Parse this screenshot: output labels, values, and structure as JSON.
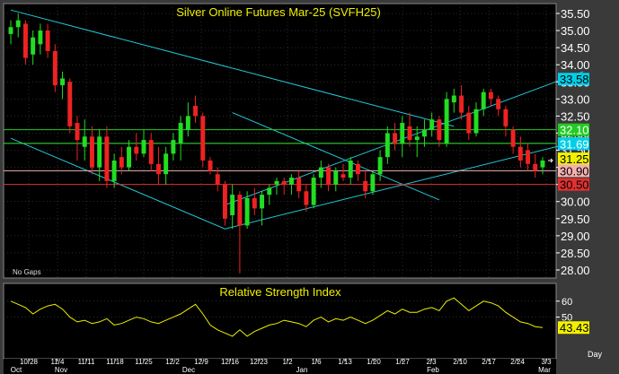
{
  "chart_data": [
    {
      "type": "candlestick",
      "title": "Silver Online Futures Mar-25 (SVFH25)",
      "note": "No Gaps",
      "ylim": [
        27.75,
        35.75
      ],
      "y_ticks": [
        "35.50",
        "35.00",
        "34.50",
        "34.00",
        "33.50",
        "33.00",
        "32.50",
        "32.00",
        "31.50",
        "31.00",
        "30.50",
        "30.00",
        "29.50",
        "29.00",
        "28.50",
        "28.00"
      ],
      "x_ticks": [
        "10/28",
        "11/4",
        "11/11",
        "11/18",
        "11/25",
        "12/2",
        "12/9",
        "12/16",
        "12/23",
        "1/2",
        "1/6",
        "1/13",
        "1/20",
        "1/27",
        "2/3",
        "2/10",
        "2/17",
        "2/24",
        "3/3"
      ],
      "x_month_labels": [
        "Oct",
        "Nov",
        "Dec",
        "Jan",
        "Feb",
        "Mar"
      ],
      "x_unit_label": "Day",
      "candles": [
        [
          34.9,
          35.3,
          34.6,
          35.1
        ],
        [
          35.1,
          35.5,
          34.8,
          35.3
        ],
        [
          35.2,
          35.3,
          34.0,
          34.2
        ],
        [
          34.3,
          35.0,
          34.0,
          34.8
        ],
        [
          34.6,
          35.2,
          34.3,
          35.0
        ],
        [
          35.0,
          35.2,
          34.2,
          34.4
        ],
        [
          34.4,
          34.6,
          33.2,
          33.4
        ],
        [
          33.4,
          33.8,
          33.0,
          33.6
        ],
        [
          33.5,
          33.6,
          32.0,
          32.2
        ],
        [
          32.3,
          32.5,
          31.2,
          31.8
        ],
        [
          31.6,
          32.4,
          31.2,
          31.9
        ],
        [
          31.9,
          32.2,
          30.8,
          31.0
        ],
        [
          31.0,
          32.1,
          30.6,
          31.9
        ],
        [
          31.9,
          32.2,
          30.4,
          30.6
        ],
        [
          30.6,
          31.4,
          30.4,
          31.2
        ],
        [
          31.3,
          31.6,
          30.8,
          31.0
        ],
        [
          31.0,
          31.8,
          30.9,
          31.6
        ],
        [
          31.6,
          32.0,
          31.2,
          31.4
        ],
        [
          31.4,
          32.1,
          31.3,
          31.8
        ],
        [
          31.8,
          32.0,
          30.9,
          31.1
        ],
        [
          31.1,
          31.6,
          30.5,
          30.8
        ],
        [
          30.8,
          31.6,
          30.5,
          31.4
        ],
        [
          31.4,
          32.0,
          31.2,
          31.8
        ],
        [
          31.7,
          32.5,
          31.2,
          32.3
        ],
        [
          32.1,
          32.9,
          31.9,
          32.5
        ],
        [
          32.8,
          33.1,
          32.3,
          32.5
        ],
        [
          32.5,
          32.6,
          31.0,
          31.2
        ],
        [
          31.2,
          31.3,
          30.8,
          30.9
        ],
        [
          30.8,
          31.0,
          30.3,
          30.5
        ],
        [
          30.5,
          30.6,
          29.3,
          29.5
        ],
        [
          29.6,
          30.5,
          29.2,
          30.2
        ],
        [
          30.2,
          30.3,
          27.9,
          29.3
        ],
        [
          29.3,
          30.3,
          29.2,
          30.1
        ],
        [
          30.1,
          30.4,
          29.6,
          29.8
        ],
        [
          29.8,
          30.3,
          29.3,
          30.2
        ],
        [
          30.2,
          30.5,
          29.9,
          30.4
        ],
        [
          30.5,
          30.7,
          30.2,
          30.6
        ],
        [
          30.6,
          30.7,
          30.2,
          30.5
        ],
        [
          30.5,
          30.8,
          30.2,
          30.7
        ],
        [
          30.7,
          30.9,
          30.1,
          30.3
        ],
        [
          30.3,
          30.5,
          29.7,
          29.9
        ],
        [
          29.9,
          30.8,
          29.8,
          30.7
        ],
        [
          30.7,
          31.2,
          30.4,
          31.0
        ],
        [
          31.0,
          31.1,
          30.3,
          30.5
        ],
        [
          30.5,
          31.0,
          30.3,
          30.9
        ],
        [
          30.8,
          31.1,
          30.6,
          30.7
        ],
        [
          30.7,
          31.3,
          30.5,
          31.2
        ],
        [
          31.1,
          31.2,
          30.6,
          30.8
        ],
        [
          30.6,
          30.9,
          30.1,
          30.3
        ],
        [
          30.3,
          30.9,
          30.2,
          30.8
        ],
        [
          30.8,
          31.5,
          30.6,
          31.3
        ],
        [
          31.3,
          32.2,
          31.1,
          32.0
        ],
        [
          32.0,
          32.3,
          31.5,
          31.7
        ],
        [
          31.7,
          32.5,
          31.3,
          32.3
        ],
        [
          32.2,
          32.6,
          31.6,
          31.8
        ],
        [
          31.8,
          32.2,
          31.3,
          31.9
        ],
        [
          31.9,
          32.4,
          31.6,
          32.1
        ],
        [
          32.1,
          32.6,
          31.9,
          32.4
        ],
        [
          32.4,
          32.5,
          31.6,
          31.8
        ],
        [
          31.7,
          33.2,
          31.6,
          33.0
        ],
        [
          32.9,
          33.3,
          32.6,
          33.1
        ],
        [
          33.1,
          33.4,
          32.4,
          32.6
        ],
        [
          32.6,
          32.8,
          31.8,
          32.0
        ],
        [
          32.0,
          32.9,
          31.9,
          32.7
        ],
        [
          32.7,
          33.3,
          32.5,
          33.2
        ],
        [
          33.2,
          33.3,
          32.8,
          33.0
        ],
        [
          33.0,
          33.1,
          32.5,
          32.7
        ],
        [
          32.7,
          32.8,
          31.9,
          32.2
        ],
        [
          32.1,
          32.2,
          31.4,
          31.6
        ],
        [
          31.6,
          31.9,
          31.0,
          31.2
        ],
        [
          31.5,
          31.7,
          30.9,
          31.1
        ],
        [
          31.1,
          31.4,
          30.7,
          30.9
        ],
        [
          31.0,
          31.3,
          30.8,
          31.2
        ]
      ],
      "trendlines": [
        {
          "name": "upper-channel",
          "from": [
            0,
            35.6
          ],
          "to": [
            60,
            32.2
          ]
        },
        {
          "name": "lower-channel",
          "from": [
            0,
            31.85
          ],
          "to": [
            29,
            29.2
          ]
        },
        {
          "name": "up-channel-upper",
          "from": [
            29,
            29.9
          ],
          "to": [
            75,
            33.8
          ]
        },
        {
          "name": "up-channel-lower",
          "from": [
            29,
            29.2
          ],
          "to": [
            75,
            31.8
          ]
        },
        {
          "name": "dec-diagonal",
          "from": [
            30,
            32.6
          ],
          "to": [
            58,
            30.05
          ]
        }
      ],
      "level_lines": [
        {
          "value": 33.58,
          "label": "33.58",
          "color": "#00cfe8"
        },
        {
          "value": 32.1,
          "label": "32.10",
          "color": "#22cc22"
        },
        {
          "value": 31.7,
          "label": "31.70",
          "color": "#33ee33"
        },
        {
          "value": 31.69,
          "label": "31.69",
          "color": "#00cfe8"
        },
        {
          "value": 31.25,
          "label": "31.25",
          "color": "#f0f000"
        },
        {
          "value": 30.9,
          "label": "30.90",
          "color": "#f4b0b0"
        },
        {
          "value": 30.5,
          "label": "30.50",
          "color": "#e03030"
        }
      ],
      "colors": {
        "up": "#22dd22",
        "down": "#ee2222",
        "background": "#000000",
        "channel": "#22c8d8",
        "grid": "#555555"
      }
    },
    {
      "type": "line",
      "title": "Relative Strength Index",
      "ylim": [
        25,
        70
      ],
      "y_ticks": [
        "60",
        "50"
      ],
      "last_value_label": "43.43",
      "values": [
        60,
        58,
        56,
        52,
        55,
        57,
        58,
        55,
        50,
        47,
        48,
        46,
        47,
        49,
        45,
        46,
        48,
        50,
        49,
        47,
        46,
        48,
        50,
        52,
        55,
        58,
        52,
        45,
        42,
        40,
        38,
        42,
        38,
        41,
        43,
        45,
        46,
        48,
        47,
        46,
        44,
        48,
        50,
        47,
        49,
        48,
        50,
        48,
        46,
        48,
        51,
        54,
        52,
        55,
        53,
        53,
        55,
        56,
        54,
        60,
        62,
        58,
        54,
        57,
        60,
        59,
        57,
        53,
        50,
        47,
        46,
        44,
        43.43
      ],
      "color": "#f0f000"
    }
  ]
}
